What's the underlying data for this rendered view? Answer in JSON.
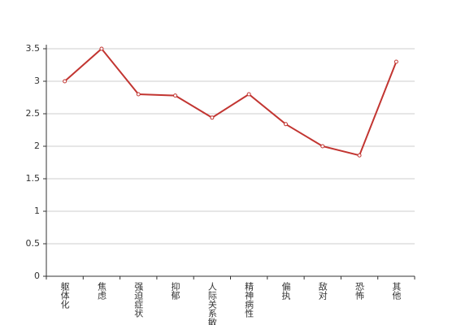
{
  "chart_data": {
    "type": "line",
    "categories": [
      "躯体化",
      "焦虑",
      "强迫症状",
      "抑郁",
      "人际关系敏感",
      "精神病性",
      "偏执",
      "敌对",
      "恐怖",
      "其他"
    ],
    "values": [
      3.0,
      3.5,
      2.8,
      2.78,
      2.44,
      2.8,
      2.34,
      2.0,
      1.86,
      3.3
    ],
    "color": "#c23531",
    "ylim": [
      0,
      3.5
    ],
    "yticks": [
      0,
      0.5,
      1,
      1.5,
      2,
      2.5,
      3,
      3.5
    ],
    "grid": true
  }
}
